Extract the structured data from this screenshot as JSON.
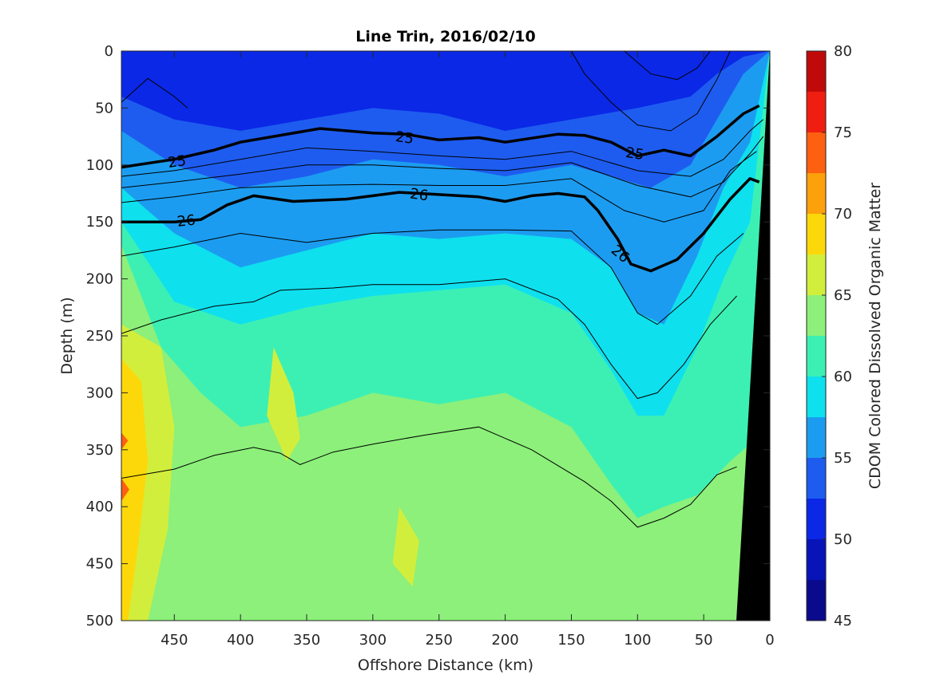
{
  "chart_data": {
    "type": "heatmap",
    "title": "Line Trin, 2016/02/10",
    "xlabel": "Offshore Distance (km)",
    "ylabel": "Depth (m)",
    "colorbar_label": "CDOM Colored Dissolved Organic Matter",
    "xlim": [
      490,
      0
    ],
    "ylim": [
      500,
      0
    ],
    "x_reversed": true,
    "y_reversed": true,
    "xticks": [
      450,
      400,
      350,
      300,
      250,
      200,
      150,
      100,
      50,
      0
    ],
    "yticks": [
      0,
      50,
      100,
      150,
      200,
      250,
      300,
      350,
      400,
      450,
      500
    ],
    "colorbar_range": [
      45,
      80
    ],
    "colorbar_ticks": [
      45,
      50,
      55,
      60,
      65,
      70,
      75,
      80
    ],
    "colorbar_levels": [
      {
        "from": 45,
        "to": 47.5,
        "color": "#0a0a8c"
      },
      {
        "from": 47.5,
        "to": 50,
        "color": "#0814b8"
      },
      {
        "from": 50,
        "to": 52.5,
        "color": "#0a28e6"
      },
      {
        "from": 52.5,
        "to": 55,
        "color": "#1e5cf0"
      },
      {
        "from": 55,
        "to": 57.5,
        "color": "#1c9cf0"
      },
      {
        "from": 57.5,
        "to": 60,
        "color": "#0ee0ee"
      },
      {
        "from": 60,
        "to": 62.5,
        "color": "#3cf0b4"
      },
      {
        "from": 62.5,
        "to": 65,
        "color": "#8cf07a"
      },
      {
        "from": 65,
        "to": 67.5,
        "color": "#d2ee3c"
      },
      {
        "from": 67.5,
        "to": 70,
        "color": "#fcd80a"
      },
      {
        "from": 70,
        "to": 72.5,
        "color": "#fca00c"
      },
      {
        "from": 72.5,
        "to": 75,
        "color": "#fc6010"
      },
      {
        "from": 75,
        "to": 77.5,
        "color": "#f01e10"
      },
      {
        "from": 77.5,
        "to": 80,
        "color": "#c00a0a"
      }
    ],
    "field_bands": [
      {
        "level": 50,
        "top": [
          [
            490,
            0
          ],
          [
            0,
            0
          ]
        ],
        "bottom": [
          [
            490,
            40
          ],
          [
            450,
            60
          ],
          [
            400,
            70
          ],
          [
            350,
            60
          ],
          [
            300,
            50
          ],
          [
            250,
            55
          ],
          [
            200,
            70
          ],
          [
            150,
            60
          ],
          [
            100,
            50
          ],
          [
            60,
            40
          ],
          [
            40,
            20
          ],
          [
            20,
            5
          ]
        ]
      },
      {
        "level": 52.5,
        "bottom": [
          [
            490,
            70
          ],
          [
            450,
            100
          ],
          [
            400,
            120
          ],
          [
            350,
            110
          ],
          [
            300,
            95
          ],
          [
            250,
            100
          ],
          [
            200,
            110
          ],
          [
            150,
            100
          ],
          [
            120,
            110
          ],
          [
            90,
            120
          ],
          [
            60,
            100
          ],
          [
            40,
            60
          ],
          [
            20,
            20
          ]
        ]
      },
      {
        "level": 55,
        "bottom": [
          [
            490,
            120
          ],
          [
            450,
            160
          ],
          [
            400,
            190
          ],
          [
            350,
            175
          ],
          [
            300,
            160
          ],
          [
            250,
            165
          ],
          [
            200,
            160
          ],
          [
            150,
            165
          ],
          [
            120,
            190
          ],
          [
            100,
            230
          ],
          [
            80,
            240
          ],
          [
            55,
            180
          ],
          [
            35,
            120
          ],
          [
            15,
            80
          ]
        ]
      },
      {
        "level": 57.5,
        "bottom": [
          [
            490,
            150
          ],
          [
            450,
            220
          ],
          [
            400,
            240
          ],
          [
            350,
            225
          ],
          [
            300,
            215
          ],
          [
            250,
            210
          ],
          [
            200,
            205
          ],
          [
            150,
            230
          ],
          [
            120,
            280
          ],
          [
            100,
            320
          ],
          [
            80,
            320
          ],
          [
            55,
            260
          ],
          [
            35,
            200
          ],
          [
            15,
            150
          ]
        ]
      },
      {
        "level": 60,
        "bottom": [
          [
            490,
            170
          ],
          [
            460,
            260
          ],
          [
            430,
            300
          ],
          [
            400,
            330
          ],
          [
            350,
            320
          ],
          [
            300,
            300
          ],
          [
            250,
            310
          ],
          [
            200,
            300
          ],
          [
            150,
            330
          ],
          [
            120,
            380
          ],
          [
            100,
            410
          ],
          [
            80,
            400
          ],
          [
            55,
            390
          ],
          [
            30,
            360
          ],
          [
            10,
            340
          ]
        ]
      },
      {
        "level": 62.5,
        "bottom": [
          [
            490,
            500
          ],
          [
            0,
            500
          ]
        ]
      }
    ],
    "high_patches": [
      {
        "level": 65,
        "points": [
          [
            490,
            240
          ],
          [
            460,
            260
          ],
          [
            450,
            330
          ],
          [
            455,
            420
          ],
          [
            470,
            500
          ],
          [
            490,
            500
          ]
        ]
      },
      {
        "level": 67.5,
        "points": [
          [
            490,
            270
          ],
          [
            475,
            290
          ],
          [
            470,
            360
          ],
          [
            478,
            440
          ],
          [
            485,
            500
          ],
          [
            490,
            500
          ]
        ]
      },
      {
        "level": 65,
        "points": [
          [
            375,
            260
          ],
          [
            360,
            300
          ],
          [
            355,
            340
          ],
          [
            365,
            360
          ],
          [
            380,
            320
          ]
        ]
      },
      {
        "level": 65,
        "points": [
          [
            280,
            400
          ],
          [
            265,
            430
          ],
          [
            270,
            470
          ],
          [
            285,
            450
          ]
        ]
      },
      {
        "level": 72.5,
        "points": [
          [
            490,
            375
          ],
          [
            484,
            385
          ],
          [
            490,
            395
          ]
        ]
      },
      {
        "level": 72.5,
        "points": [
          [
            490,
            335
          ],
          [
            485,
            342
          ],
          [
            490,
            350
          ]
        ]
      }
    ],
    "density_contours": [
      {
        "points": [
          [
            490,
            102
          ],
          [
            450,
            95
          ],
          [
            420,
            87
          ],
          [
            400,
            80
          ],
          [
            380,
            76
          ],
          [
            340,
            68
          ],
          [
            300,
            72
          ],
          [
            275,
            73
          ],
          [
            250,
            78
          ],
          [
            220,
            76
          ],
          [
            200,
            80
          ],
          [
            160,
            73
          ],
          [
            140,
            74
          ],
          [
            120,
            80
          ],
          [
            100,
            92
          ],
          [
            80,
            87
          ],
          [
            60,
            92
          ],
          [
            40,
            75
          ],
          [
            20,
            55
          ],
          [
            8,
            48
          ]
        ]
      },
      {
        "points": [
          [
            490,
            150
          ],
          [
            450,
            150
          ],
          [
            430,
            148
          ],
          [
            410,
            135
          ],
          [
            390,
            127
          ],
          [
            360,
            132
          ],
          [
            320,
            130
          ],
          [
            280,
            124
          ],
          [
            250,
            126
          ],
          [
            220,
            128
          ],
          [
            200,
            132
          ],
          [
            180,
            127
          ],
          [
            160,
            125
          ],
          [
            140,
            128
          ],
          [
            130,
            140
          ],
          [
            115,
            165
          ],
          [
            105,
            187
          ],
          [
            90,
            193
          ],
          [
            70,
            183
          ],
          [
            50,
            160
          ],
          [
            30,
            130
          ],
          [
            15,
            112
          ],
          [
            8,
            115
          ]
        ]
      }
    ],
    "thin_contours": [
      {
        "points": [
          [
            490,
            110
          ],
          [
            450,
            105
          ],
          [
            400,
            95
          ],
          [
            350,
            85
          ],
          [
            300,
            88
          ],
          [
            250,
            92
          ],
          [
            200,
            95
          ],
          [
            150,
            88
          ],
          [
            100,
            105
          ],
          [
            60,
            110
          ],
          [
            35,
            95
          ],
          [
            15,
            70
          ],
          [
            5,
            60
          ]
        ]
      },
      {
        "points": [
          [
            490,
            120
          ],
          [
            450,
            115
          ],
          [
            400,
            108
          ],
          [
            350,
            100
          ],
          [
            300,
            100
          ],
          [
            250,
            103
          ],
          [
            200,
            105
          ],
          [
            150,
            98
          ],
          [
            100,
            118
          ],
          [
            60,
            128
          ],
          [
            35,
            115
          ],
          [
            15,
            90
          ],
          [
            5,
            75
          ]
        ]
      },
      {
        "points": [
          [
            490,
            133
          ],
          [
            450,
            128
          ],
          [
            400,
            120
          ],
          [
            350,
            118
          ],
          [
            300,
            117
          ],
          [
            250,
            118
          ],
          [
            200,
            118
          ],
          [
            150,
            112
          ],
          [
            110,
            140
          ],
          [
            80,
            150
          ],
          [
            50,
            140
          ],
          [
            30,
            105
          ],
          [
            10,
            88
          ]
        ]
      },
      {
        "points": [
          [
            490,
            180
          ],
          [
            450,
            172
          ],
          [
            400,
            160
          ],
          [
            350,
            168
          ],
          [
            300,
            160
          ],
          [
            250,
            157
          ],
          [
            200,
            157
          ],
          [
            150,
            158
          ],
          [
            120,
            190
          ],
          [
            100,
            230
          ],
          [
            85,
            240
          ],
          [
            60,
            215
          ],
          [
            40,
            180
          ],
          [
            20,
            160
          ]
        ]
      },
      {
        "points": [
          [
            490,
            248
          ],
          [
            460,
            236
          ],
          [
            420,
            224
          ],
          [
            390,
            220
          ],
          [
            370,
            210
          ],
          [
            330,
            208
          ],
          [
            300,
            205
          ],
          [
            250,
            205
          ],
          [
            200,
            200
          ],
          [
            160,
            218
          ],
          [
            140,
            240
          ],
          [
            120,
            275
          ],
          [
            100,
            305
          ],
          [
            85,
            300
          ],
          [
            65,
            275
          ],
          [
            45,
            240
          ],
          [
            25,
            215
          ]
        ]
      },
      {
        "points": [
          [
            490,
            375
          ],
          [
            450,
            367
          ],
          [
            420,
            355
          ],
          [
            390,
            348
          ],
          [
            370,
            353
          ],
          [
            355,
            363
          ],
          [
            330,
            352
          ],
          [
            300,
            345
          ],
          [
            260,
            337
          ],
          [
            220,
            330
          ],
          [
            180,
            350
          ],
          [
            140,
            378
          ],
          [
            120,
            395
          ],
          [
            100,
            418
          ],
          [
            80,
            410
          ],
          [
            60,
            398
          ],
          [
            40,
            372
          ],
          [
            25,
            365
          ]
        ]
      },
      {
        "points": [
          [
            490,
            45
          ],
          [
            470,
            24
          ],
          [
            450,
            40
          ],
          [
            440,
            50
          ]
        ]
      },
      {
        "points": [
          [
            150,
            0
          ],
          [
            140,
            20
          ],
          [
            120,
            45
          ],
          [
            100,
            65
          ],
          [
            75,
            70
          ],
          [
            55,
            55
          ],
          [
            40,
            25
          ],
          [
            30,
            0
          ]
        ]
      },
      {
        "points": [
          [
            110,
            0
          ],
          [
            90,
            20
          ],
          [
            70,
            25
          ],
          [
            55,
            15
          ],
          [
            45,
            0
          ]
        ]
      }
    ],
    "contour_labels": [
      {
        "text": "25",
        "x": 448,
        "y": 97,
        "angle": -8
      },
      {
        "text": "25",
        "x": 276,
        "y": 76,
        "angle": 8
      },
      {
        "text": "25",
        "x": 102,
        "y": 90,
        "angle": 8
      },
      {
        "text": "26",
        "x": 441,
        "y": 149,
        "angle": -6
      },
      {
        "text": "26",
        "x": 265,
        "y": 126,
        "angle": 8
      },
      {
        "text": "26",
        "x": 113,
        "y": 178,
        "angle": 40
      }
    ],
    "grid": false,
    "legend": "colorbar-right"
  }
}
